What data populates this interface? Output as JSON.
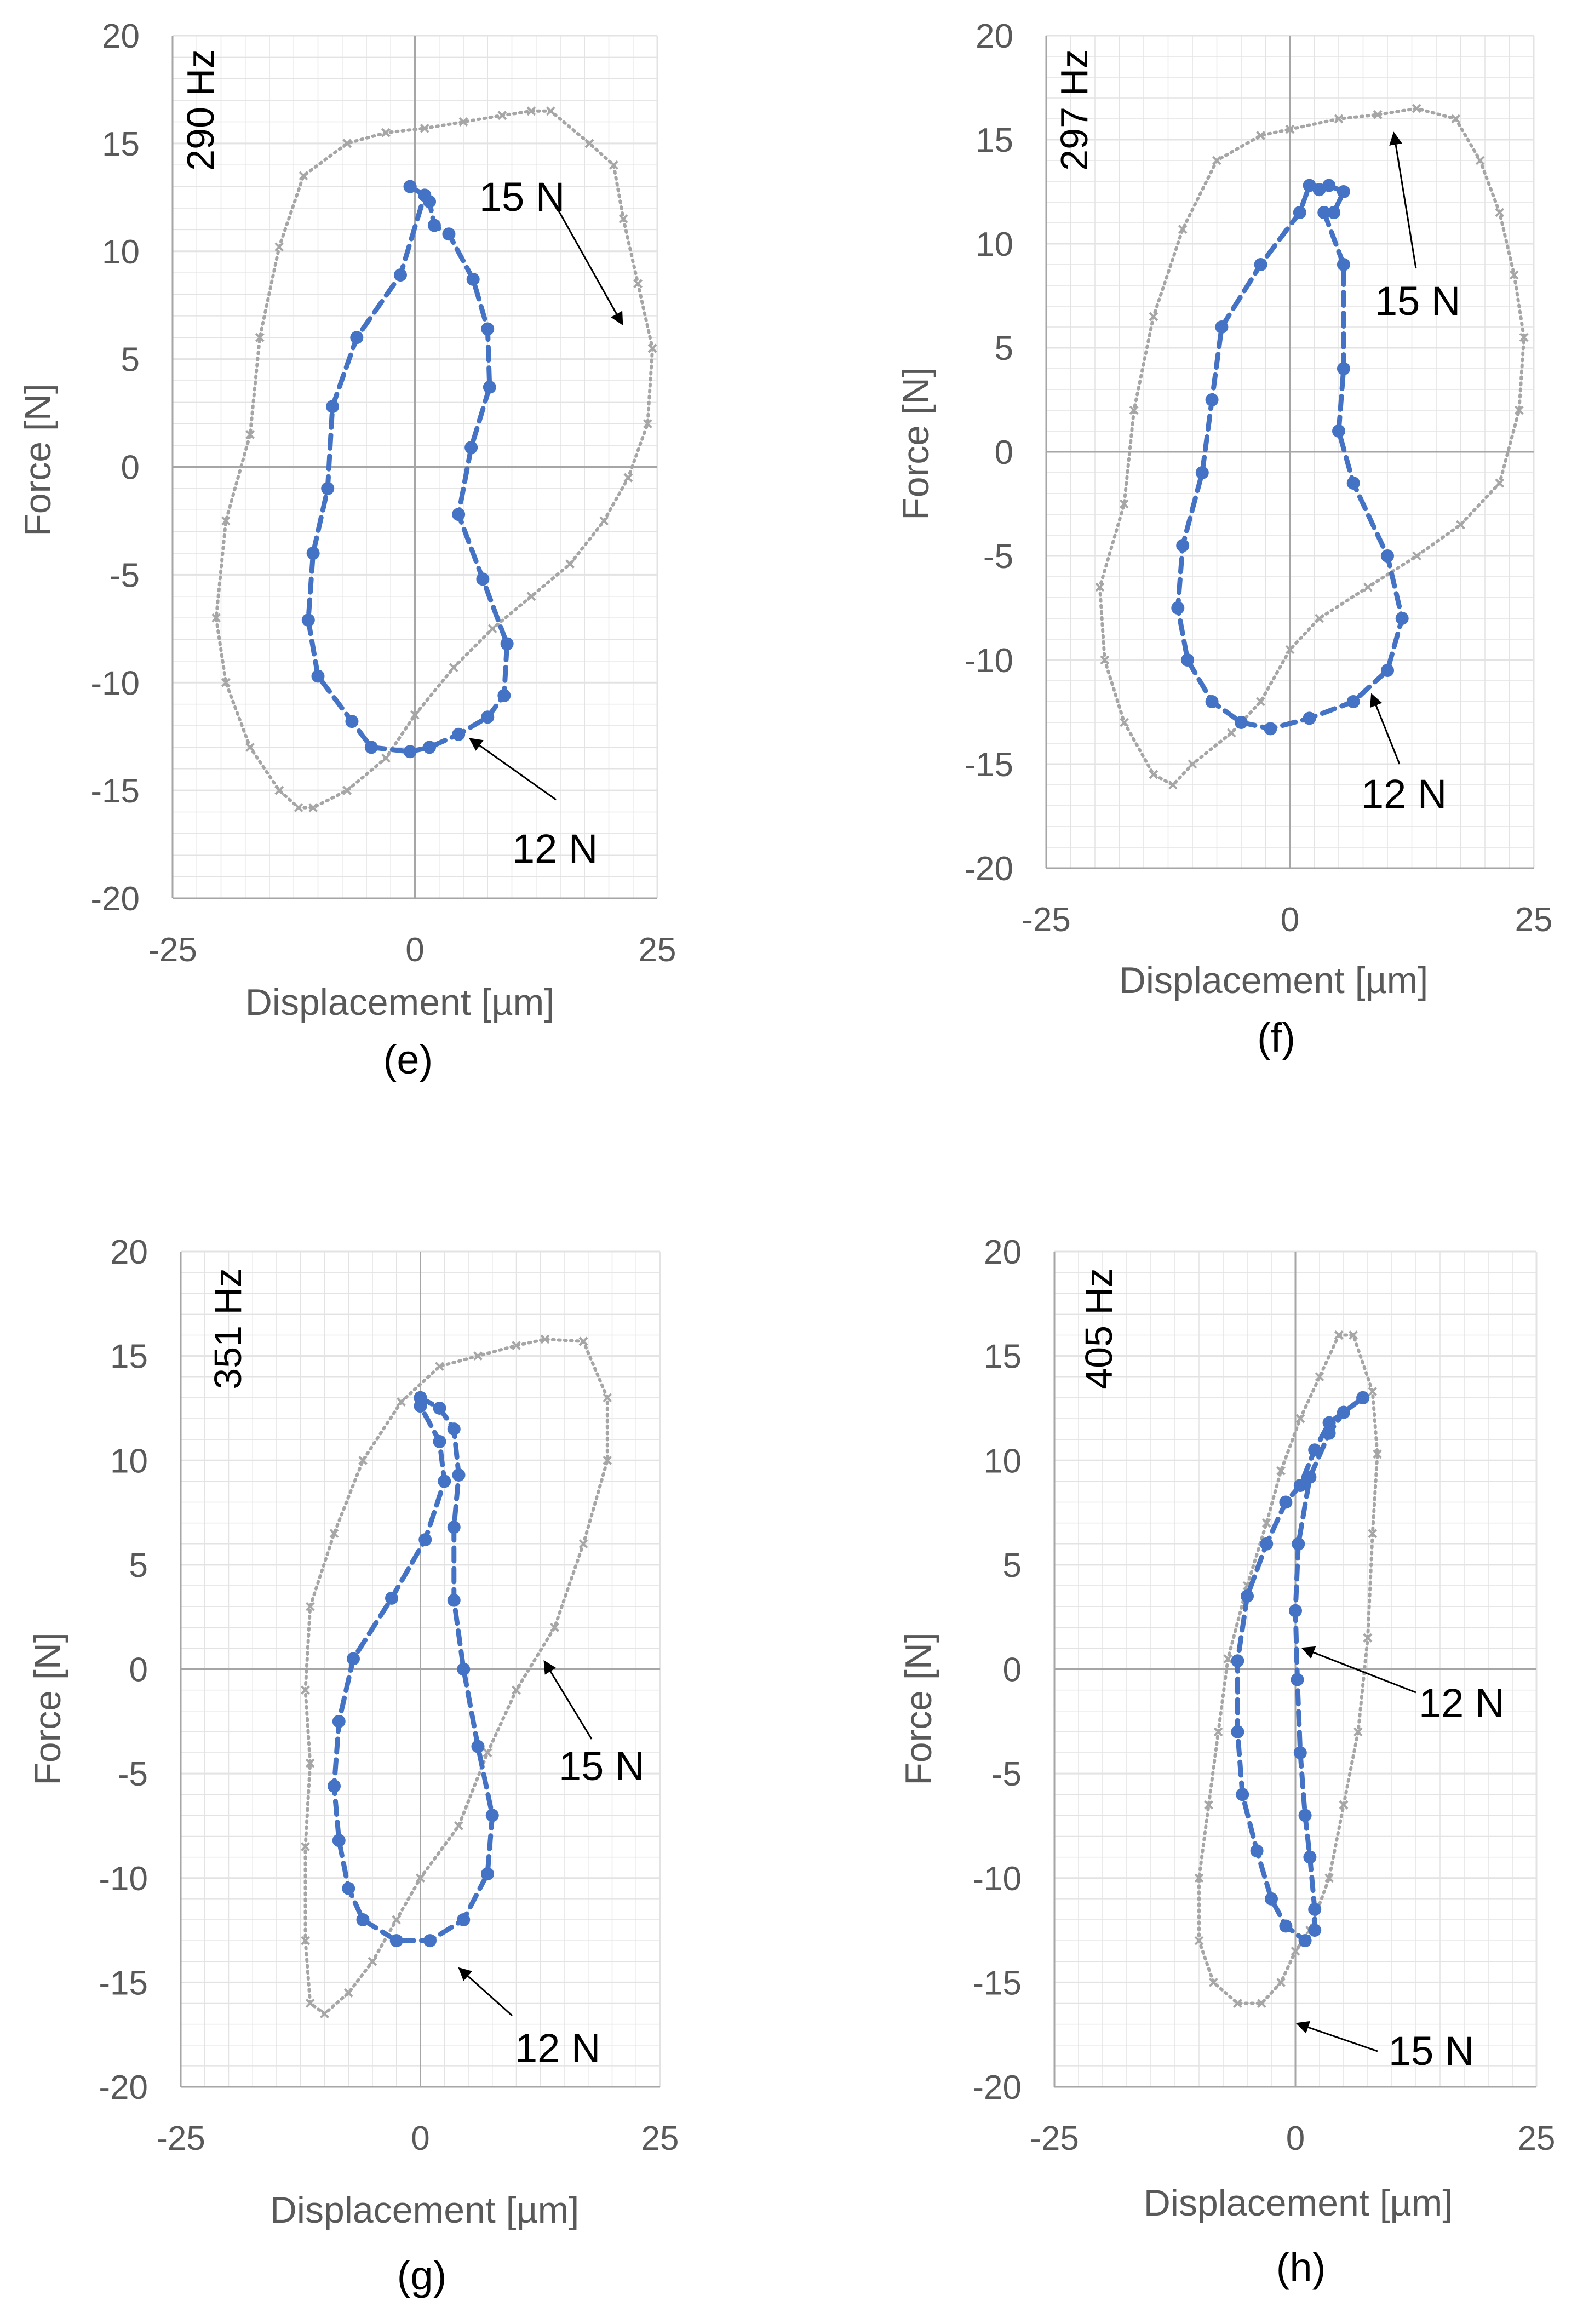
{
  "figure": {
    "colors": {
      "load12": "#4472C4",
      "load15": "#A6A6A6",
      "axis": "#A6A6A6",
      "grid": "#E3E3E3",
      "text": "#595959"
    }
  },
  "chart_data": [
    {
      "type": "scatter",
      "subplot": "(e)",
      "frequency": "290 Hz",
      "xlabel": "Displacement [µm]",
      "ylabel": "Force [N]",
      "xlim": [
        -25,
        25
      ],
      "ylim": [
        -20,
        20
      ],
      "xticks": [
        "-25",
        "0",
        "25"
      ],
      "yticks": [
        "20",
        "15",
        "10",
        "5",
        "0",
        "-5",
        "-10",
        "-15",
        "-20"
      ],
      "series": [
        {
          "name": "15 N",
          "style": "dotted",
          "points": [
            [
              1,
              15.7
            ],
            [
              5,
              16
            ],
            [
              9,
              16.3
            ],
            [
              12,
              16.5
            ],
            [
              14,
              16.5
            ],
            [
              18,
              15
            ],
            [
              20.5,
              14
            ],
            [
              21.5,
              11.5
            ],
            [
              23,
              8.5
            ],
            [
              24.5,
              5.5
            ],
            [
              24,
              2
            ],
            [
              22,
              -0.5
            ],
            [
              19.5,
              -2.5
            ],
            [
              16,
              -4.5
            ],
            [
              12,
              -6
            ],
            [
              8,
              -7.5
            ],
            [
              4,
              -9.3
            ],
            [
              0,
              -11.5
            ],
            [
              -3,
              -13.5
            ],
            [
              -7,
              -15
            ],
            [
              -10.5,
              -15.8
            ],
            [
              -12,
              -15.8
            ],
            [
              -14,
              -15
            ],
            [
              -17,
              -13
            ],
            [
              -19.5,
              -10
            ],
            [
              -20.5,
              -7
            ],
            [
              -19.5,
              -2.5
            ],
            [
              -17,
              1.5
            ],
            [
              -16,
              6
            ],
            [
              -14,
              10.2
            ],
            [
              -11.5,
              13.5
            ],
            [
              -7,
              15
            ],
            [
              -3,
              15.5
            ],
            [
              1,
              15.7
            ]
          ]
        },
        {
          "name": "12 N",
          "style": "dashed",
          "points": [
            [
              -0.5,
              13
            ],
            [
              1,
              12.6
            ],
            [
              1.5,
              12.3
            ],
            [
              2,
              11.2
            ],
            [
              3.5,
              10.8
            ],
            [
              6,
              8.7
            ],
            [
              7.5,
              6.4
            ],
            [
              7.7,
              3.7
            ],
            [
              5.8,
              0.9
            ],
            [
              4.5,
              -2.2
            ],
            [
              7,
              -5.2
            ],
            [
              9.5,
              -8.2
            ],
            [
              9.2,
              -10.6
            ],
            [
              7.5,
              -11.6
            ],
            [
              4.5,
              -12.4
            ],
            [
              1.5,
              -13
            ],
            [
              -0.5,
              -13.2
            ],
            [
              -4.5,
              -13
            ],
            [
              -6.5,
              -11.8
            ],
            [
              -10,
              -9.7
            ],
            [
              -11,
              -7.1
            ],
            [
              -10.5,
              -4
            ],
            [
              -9,
              -1
            ],
            [
              -8.5,
              2.8
            ],
            [
              -6,
              6
            ],
            [
              -1.5,
              8.9
            ],
            [
              1,
              12.6
            ],
            [
              -0.5,
              13
            ]
          ]
        }
      ],
      "annotations": [
        "15 N",
        "12 N"
      ]
    },
    {
      "type": "scatter",
      "subplot": "(f)",
      "frequency": "297 Hz",
      "xlabel": "Displacement [µm]",
      "ylabel": "Force [N]",
      "xlim": [
        -25,
        25
      ],
      "ylim": [
        -20,
        20
      ],
      "xticks": [
        "-25",
        "0",
        "25"
      ],
      "yticks": [
        "20",
        "15",
        "10",
        "5",
        "0",
        "-5",
        "-10",
        "-15",
        "-20"
      ],
      "series": [
        {
          "name": "15 N",
          "style": "dotted",
          "points": [
            [
              0,
              15.5
            ],
            [
              5,
              16
            ],
            [
              9,
              16.2
            ],
            [
              13,
              16.5
            ],
            [
              17,
              16
            ],
            [
              19.5,
              14
            ],
            [
              21.5,
              11.5
            ],
            [
              23,
              8.5
            ],
            [
              24,
              5.5
            ],
            [
              23.5,
              2
            ],
            [
              21.5,
              -1.5
            ],
            [
              17.5,
              -3.5
            ],
            [
              13,
              -5
            ],
            [
              8,
              -6.5
            ],
            [
              3,
              -8
            ],
            [
              0,
              -9.5
            ],
            [
              -3,
              -12
            ],
            [
              -6,
              -13.5
            ],
            [
              -10,
              -15
            ],
            [
              -12,
              -16
            ],
            [
              -14,
              -15.5
            ],
            [
              -17,
              -13
            ],
            [
              -19,
              -10
            ],
            [
              -19.5,
              -6.5
            ],
            [
              -17,
              -2.5
            ],
            [
              -16,
              2
            ],
            [
              -14,
              6.5
            ],
            [
              -11,
              10.7
            ],
            [
              -7.5,
              14
            ],
            [
              -3,
              15.2
            ],
            [
              0,
              15.5
            ]
          ]
        },
        {
          "name": "12 N",
          "style": "dashed",
          "points": [
            [
              3.5,
              11.5
            ],
            [
              5.5,
              9
            ],
            [
              5.5,
              4
            ],
            [
              5,
              1
            ],
            [
              6.5,
              -1.5
            ],
            [
              10,
              -5
            ],
            [
              11.5,
              -8
            ],
            [
              10,
              -10.5
            ],
            [
              6.5,
              -12
            ],
            [
              2,
              -12.8
            ],
            [
              -2,
              -13.3
            ],
            [
              -5,
              -13
            ],
            [
              -8,
              -12
            ],
            [
              -10.5,
              -10
            ],
            [
              -11.5,
              -7.5
            ],
            [
              -11,
              -4.5
            ],
            [
              -9,
              -1
            ],
            [
              -8,
              2.5
            ],
            [
              -7,
              6
            ],
            [
              -3,
              9
            ],
            [
              1,
              11.5
            ],
            [
              2,
              12.8
            ],
            [
              3,
              12.6
            ],
            [
              4,
              12.8
            ],
            [
              5.5,
              12.5
            ],
            [
              4.5,
              11.5
            ],
            [
              3.5,
              11.5
            ]
          ]
        }
      ],
      "annotations": [
        "15 N",
        "12 N"
      ]
    },
    {
      "type": "scatter",
      "subplot": "(g)",
      "frequency": "351 Hz",
      "xlabel": "Displacement [µm]",
      "ylabel": "Force [N]",
      "xlim": [
        -25,
        25
      ],
      "ylim": [
        -20,
        20
      ],
      "xticks": [
        "-25",
        "0",
        "25"
      ],
      "yticks": [
        "20",
        "15",
        "10",
        "5",
        "0",
        "-5",
        "-10",
        "-15",
        "-20"
      ],
      "series": [
        {
          "name": "15 N",
          "style": "dotted",
          "points": [
            [
              -2,
              12.8
            ],
            [
              2,
              14.5
            ],
            [
              6,
              15
            ],
            [
              10,
              15.5
            ],
            [
              13,
              15.8
            ],
            [
              17,
              15.7
            ],
            [
              19.5,
              13
            ],
            [
              19.5,
              10
            ],
            [
              17,
              6
            ],
            [
              14,
              2
            ],
            [
              10,
              -1
            ],
            [
              7,
              -4
            ],
            [
              4,
              -7.5
            ],
            [
              0,
              -10
            ],
            [
              -2.5,
              -12
            ],
            [
              -5,
              -14
            ],
            [
              -7.5,
              -15.5
            ],
            [
              -10,
              -16.5
            ],
            [
              -11.5,
              -16
            ],
            [
              -12,
              -13
            ],
            [
              -12,
              -8.5
            ],
            [
              -11.5,
              -4.5
            ],
            [
              -12,
              -1
            ],
            [
              -11.5,
              3
            ],
            [
              -9,
              6.5
            ],
            [
              -6,
              10
            ],
            [
              -2,
              12.8
            ]
          ]
        },
        {
          "name": "12 N",
          "style": "dashed",
          "points": [
            [
              0,
              13
            ],
            [
              2,
              12.5
            ],
            [
              3.5,
              11.5
            ],
            [
              4,
              9.3
            ],
            [
              3.5,
              6.8
            ],
            [
              3.5,
              3.3
            ],
            [
              4.5,
              0
            ],
            [
              6,
              -3.7
            ],
            [
              7.5,
              -7
            ],
            [
              7,
              -9.8
            ],
            [
              4.5,
              -12
            ],
            [
              1,
              -13
            ],
            [
              -2.5,
              -13
            ],
            [
              -6,
              -12
            ],
            [
              -7.5,
              -10.5
            ],
            [
              -8.5,
              -8.2
            ],
            [
              -9,
              -5.6
            ],
            [
              -8.5,
              -2.5
            ],
            [
              -7,
              0.5
            ],
            [
              -3,
              3.4
            ],
            [
              0.5,
              6.2
            ],
            [
              2.5,
              9
            ],
            [
              2,
              10.9
            ],
            [
              0,
              12.6
            ],
            [
              0,
              13
            ]
          ]
        }
      ],
      "annotations": [
        "15 N",
        "12 N"
      ]
    },
    {
      "type": "scatter",
      "subplot": "(h)",
      "frequency": "405 Hz",
      "xlabel": "Displacement [µm]",
      "ylabel": "Force [N]",
      "xlim": [
        -25,
        25
      ],
      "ylim": [
        -20,
        20
      ],
      "xticks": [
        "-25",
        "0",
        "25"
      ],
      "yticks": [
        "20",
        "15",
        "10",
        "5",
        "0",
        "-5",
        "-10",
        "-15",
        "-20"
      ],
      "series": [
        {
          "name": "15 N",
          "style": "dotted",
          "points": [
            [
              4.5,
              16
            ],
            [
              6,
              16
            ],
            [
              8,
              13.3
            ],
            [
              8.5,
              10.3
            ],
            [
              8,
              6.5
            ],
            [
              7.5,
              1.5
            ],
            [
              6.5,
              -3
            ],
            [
              5,
              -6.5
            ],
            [
              3.5,
              -10
            ],
            [
              1.5,
              -12.5
            ],
            [
              0,
              -13.5
            ],
            [
              -1.5,
              -15
            ],
            [
              -3.5,
              -16
            ],
            [
              -6,
              -16
            ],
            [
              -8.5,
              -15
            ],
            [
              -10,
              -13
            ],
            [
              -10,
              -10
            ],
            [
              -9,
              -6.5
            ],
            [
              -8,
              -3
            ],
            [
              -7,
              0.5
            ],
            [
              -5,
              4
            ],
            [
              -3,
              7
            ],
            [
              -1.5,
              9.5
            ],
            [
              0.5,
              12
            ],
            [
              2.5,
              14
            ],
            [
              4.5,
              16
            ]
          ]
        },
        {
          "name": "12 N",
          "style": "dashed",
          "points": [
            [
              7,
              13
            ],
            [
              5,
              12.3
            ],
            [
              3.5,
              11.3
            ],
            [
              1.5,
              9.2
            ],
            [
              0.3,
              6
            ],
            [
              0,
              2.8
            ],
            [
              0.2,
              -0.5
            ],
            [
              0.5,
              -4
            ],
            [
              1,
              -7
            ],
            [
              1.5,
              -9
            ],
            [
              2,
              -11.5
            ],
            [
              2,
              -12.5
            ],
            [
              1,
              -13
            ],
            [
              -1,
              -12.3
            ],
            [
              -2.5,
              -11
            ],
            [
              -4,
              -8.7
            ],
            [
              -5.5,
              -6
            ],
            [
              -6,
              -3
            ],
            [
              -6,
              0.4
            ],
            [
              -5,
              3.5
            ],
            [
              -3,
              6
            ],
            [
              -1,
              8
            ],
            [
              0.5,
              8.8
            ],
            [
              2,
              10.5
            ],
            [
              3.5,
              11.8
            ],
            [
              5,
              12.3
            ],
            [
              7,
              13
            ]
          ]
        }
      ],
      "annotations": [
        "12 N",
        "15 N"
      ]
    }
  ]
}
